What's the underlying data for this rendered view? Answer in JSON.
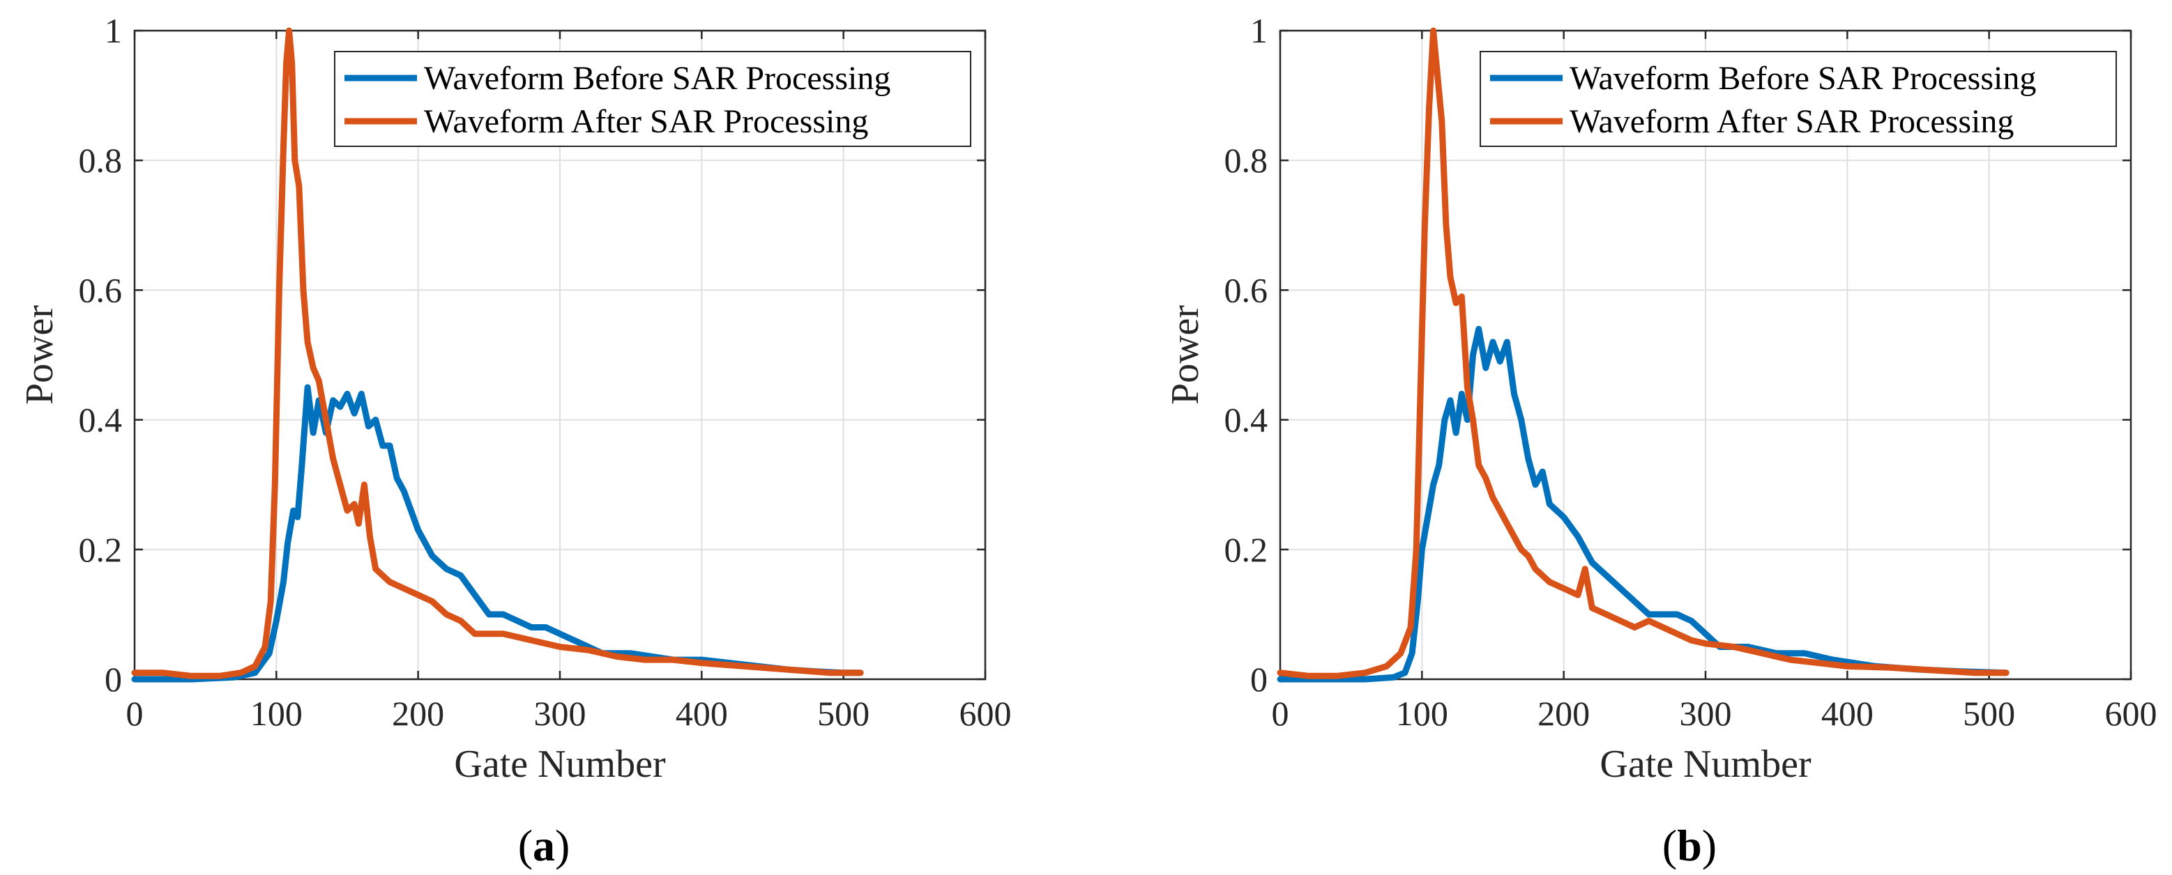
{
  "figure": {
    "background": "#ffffff"
  },
  "chart_data": [
    {
      "type": "line",
      "panel_label": "(a)",
      "panel_letter": "a",
      "xlabel": "Gate Number",
      "ylabel": "Power",
      "xlim": [
        0,
        600
      ],
      "ylim": [
        0,
        1
      ],
      "xticks": [
        0,
        100,
        200,
        300,
        400,
        500,
        600
      ],
      "yticks": [
        0,
        0.2,
        0.4,
        0.6,
        0.8,
        1
      ],
      "ytick_labels": [
        "0",
        "0.2",
        "0.4",
        "0.6",
        "0.8",
        "1"
      ],
      "grid": true,
      "legend_position": "top-right",
      "series": [
        {
          "name": "Waveform Before SAR Processing",
          "color": "#0072BD",
          "points": [
            [
              0,
              0
            ],
            [
              40,
              0
            ],
            [
              70,
              0.003
            ],
            [
              85,
              0.01
            ],
            [
              95,
              0.04
            ],
            [
              100,
              0.09
            ],
            [
              105,
              0.15
            ],
            [
              108,
              0.21
            ],
            [
              112,
              0.26
            ],
            [
              115,
              0.25
            ],
            [
              118,
              0.33
            ],
            [
              122,
              0.45
            ],
            [
              126,
              0.38
            ],
            [
              130,
              0.43
            ],
            [
              135,
              0.38
            ],
            [
              140,
              0.43
            ],
            [
              145,
              0.42
            ],
            [
              150,
              0.44
            ],
            [
              155,
              0.41
            ],
            [
              160,
              0.44
            ],
            [
              165,
              0.39
            ],
            [
              170,
              0.4
            ],
            [
              175,
              0.36
            ],
            [
              180,
              0.36
            ],
            [
              185,
              0.31
            ],
            [
              190,
              0.29
            ],
            [
              195,
              0.26
            ],
            [
              200,
              0.23
            ],
            [
              210,
              0.19
            ],
            [
              220,
              0.17
            ],
            [
              230,
              0.16
            ],
            [
              240,
              0.13
            ],
            [
              250,
              0.1
            ],
            [
              260,
              0.1
            ],
            [
              270,
              0.09
            ],
            [
              280,
              0.08
            ],
            [
              290,
              0.08
            ],
            [
              300,
              0.07
            ],
            [
              310,
              0.06
            ],
            [
              320,
              0.05
            ],
            [
              330,
              0.04
            ],
            [
              350,
              0.04
            ],
            [
              380,
              0.03
            ],
            [
              400,
              0.03
            ],
            [
              420,
              0.025
            ],
            [
              440,
              0.02
            ],
            [
              460,
              0.015
            ],
            [
              480,
              0.012
            ],
            [
              500,
              0.01
            ],
            [
              512,
              0.01
            ]
          ]
        },
        {
          "name": "Waveform After SAR Processing",
          "color": "#D95319",
          "points": [
            [
              0,
              0.01
            ],
            [
              20,
              0.01
            ],
            [
              40,
              0.005
            ],
            [
              60,
              0.005
            ],
            [
              75,
              0.01
            ],
            [
              85,
              0.02
            ],
            [
              92,
              0.05
            ],
            [
              96,
              0.12
            ],
            [
              99,
              0.3
            ],
            [
              102,
              0.6
            ],
            [
              105,
              0.82
            ],
            [
              107,
              0.95
            ],
            [
              109,
              1.0
            ],
            [
              111,
              0.95
            ],
            [
              113,
              0.8
            ],
            [
              116,
              0.76
            ],
            [
              119,
              0.6
            ],
            [
              122,
              0.52
            ],
            [
              126,
              0.48
            ],
            [
              130,
              0.46
            ],
            [
              135,
              0.4
            ],
            [
              140,
              0.34
            ],
            [
              145,
              0.3
            ],
            [
              150,
              0.26
            ],
            [
              155,
              0.27
            ],
            [
              158,
              0.24
            ],
            [
              162,
              0.3
            ],
            [
              166,
              0.22
            ],
            [
              170,
              0.17
            ],
            [
              175,
              0.16
            ],
            [
              180,
              0.15
            ],
            [
              190,
              0.14
            ],
            [
              200,
              0.13
            ],
            [
              210,
              0.12
            ],
            [
              220,
              0.1
            ],
            [
              230,
              0.09
            ],
            [
              240,
              0.07
            ],
            [
              250,
              0.07
            ],
            [
              260,
              0.07
            ],
            [
              280,
              0.06
            ],
            [
              300,
              0.05
            ],
            [
              320,
              0.045
            ],
            [
              340,
              0.035
            ],
            [
              360,
              0.03
            ],
            [
              380,
              0.03
            ],
            [
              400,
              0.025
            ],
            [
              430,
              0.02
            ],
            [
              460,
              0.015
            ],
            [
              490,
              0.01
            ],
            [
              512,
              0.01
            ]
          ]
        }
      ]
    },
    {
      "type": "line",
      "panel_label": "(b)",
      "panel_letter": "b",
      "xlabel": "Gate Number",
      "ylabel": "Power",
      "xlim": [
        0,
        600
      ],
      "ylim": [
        0,
        1
      ],
      "xticks": [
        0,
        100,
        200,
        300,
        400,
        500,
        600
      ],
      "yticks": [
        0,
        0.2,
        0.4,
        0.6,
        0.8,
        1
      ],
      "ytick_labels": [
        "0",
        "0.2",
        "0.4",
        "0.6",
        "0.8",
        "1"
      ],
      "grid": true,
      "legend_position": "top-right",
      "series": [
        {
          "name": "Waveform Before SAR Processing",
          "color": "#0072BD",
          "points": [
            [
              0,
              0
            ],
            [
              60,
              0
            ],
            [
              80,
              0.003
            ],
            [
              88,
              0.01
            ],
            [
              93,
              0.04
            ],
            [
              97,
              0.12
            ],
            [
              100,
              0.2
            ],
            [
              104,
              0.25
            ],
            [
              108,
              0.3
            ],
            [
              112,
              0.33
            ],
            [
              116,
              0.4
            ],
            [
              120,
              0.43
            ],
            [
              124,
              0.38
            ],
            [
              128,
              0.44
            ],
            [
              132,
              0.4
            ],
            [
              136,
              0.5
            ],
            [
              140,
              0.54
            ],
            [
              145,
              0.48
            ],
            [
              150,
              0.52
            ],
            [
              155,
              0.49
            ],
            [
              160,
              0.52
            ],
            [
              165,
              0.44
            ],
            [
              170,
              0.4
            ],
            [
              175,
              0.34
            ],
            [
              180,
              0.3
            ],
            [
              185,
              0.32
            ],
            [
              190,
              0.27
            ],
            [
              200,
              0.25
            ],
            [
              210,
              0.22
            ],
            [
              220,
              0.18
            ],
            [
              230,
              0.16
            ],
            [
              240,
              0.14
            ],
            [
              250,
              0.12
            ],
            [
              260,
              0.1
            ],
            [
              270,
              0.1
            ],
            [
              280,
              0.1
            ],
            [
              290,
              0.09
            ],
            [
              300,
              0.07
            ],
            [
              310,
              0.05
            ],
            [
              330,
              0.05
            ],
            [
              350,
              0.04
            ],
            [
              370,
              0.04
            ],
            [
              390,
              0.03
            ],
            [
              420,
              0.02
            ],
            [
              450,
              0.015
            ],
            [
              480,
              0.012
            ],
            [
              512,
              0.01
            ]
          ]
        },
        {
          "name": "Waveform After SAR Processing",
          "color": "#D95319",
          "points": [
            [
              0,
              0.01
            ],
            [
              20,
              0.005
            ],
            [
              40,
              0.005
            ],
            [
              60,
              0.01
            ],
            [
              75,
              0.02
            ],
            [
              85,
              0.04
            ],
            [
              92,
              0.08
            ],
            [
              96,
              0.2
            ],
            [
              99,
              0.45
            ],
            [
              102,
              0.7
            ],
            [
              105,
              0.88
            ],
            [
              108,
              1.0
            ],
            [
              111,
              0.93
            ],
            [
              114,
              0.86
            ],
            [
              117,
              0.7
            ],
            [
              120,
              0.62
            ],
            [
              124,
              0.58
            ],
            [
              128,
              0.59
            ],
            [
              132,
              0.45
            ],
            [
              136,
              0.4
            ],
            [
              140,
              0.33
            ],
            [
              145,
              0.31
            ],
            [
              150,
              0.28
            ],
            [
              155,
              0.26
            ],
            [
              160,
              0.24
            ],
            [
              165,
              0.22
            ],
            [
              170,
              0.2
            ],
            [
              175,
              0.19
            ],
            [
              180,
              0.17
            ],
            [
              190,
              0.15
            ],
            [
              200,
              0.14
            ],
            [
              210,
              0.13
            ],
            [
              215,
              0.17
            ],
            [
              220,
              0.11
            ],
            [
              230,
              0.1
            ],
            [
              240,
              0.09
            ],
            [
              250,
              0.08
            ],
            [
              260,
              0.09
            ],
            [
              270,
              0.08
            ],
            [
              280,
              0.07
            ],
            [
              290,
              0.06
            ],
            [
              300,
              0.055
            ],
            [
              320,
              0.05
            ],
            [
              340,
              0.04
            ],
            [
              360,
              0.03
            ],
            [
              380,
              0.025
            ],
            [
              400,
              0.02
            ],
            [
              430,
              0.018
            ],
            [
              460,
              0.014
            ],
            [
              490,
              0.01
            ],
            [
              512,
              0.01
            ]
          ]
        }
      ]
    }
  ]
}
